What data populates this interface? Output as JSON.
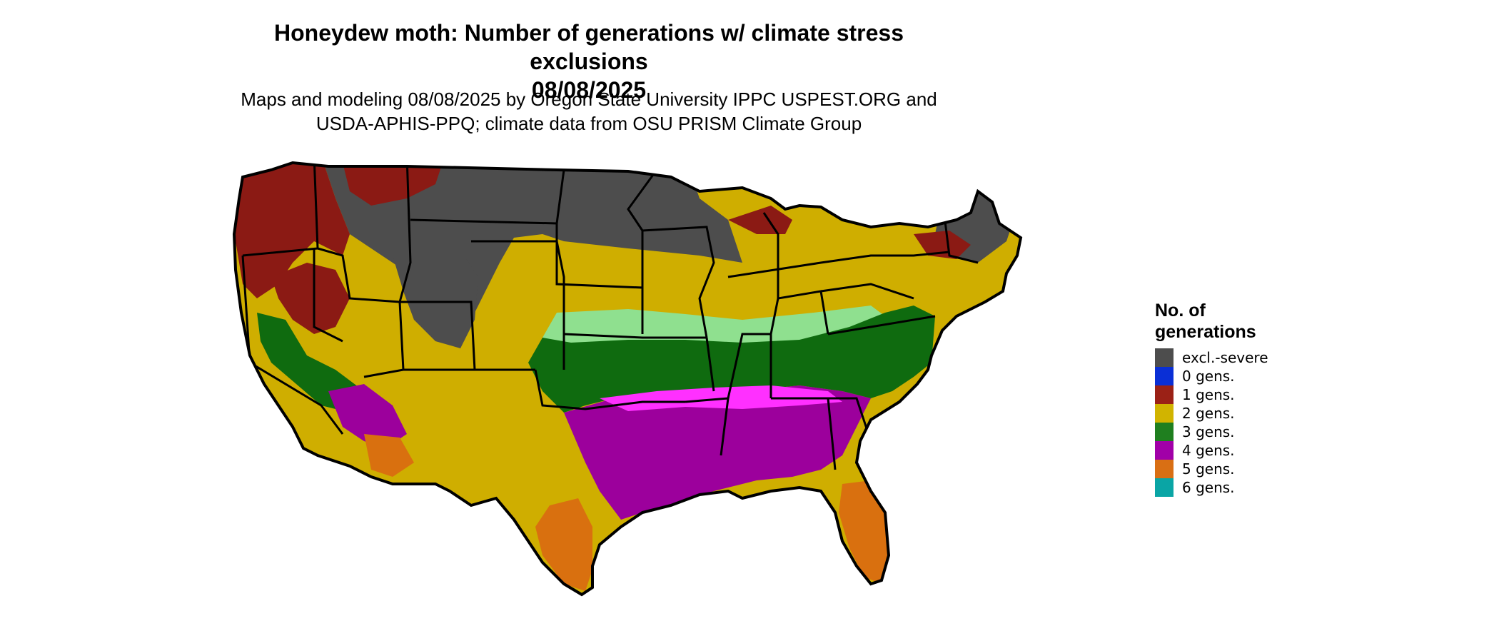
{
  "title": "Honeydew moth: Number of generations w/ climate stress exclusions",
  "title_date": "08/08/2025",
  "subtitle_line1": "Maps and modeling 08/08/2025 by Oregon State University IPPC USPEST.ORG and",
  "subtitle_line2": "USDA-APHIS-PPQ; climate data from OSU PRISM Climate Group",
  "legend": {
    "title_line1": "No. of",
    "title_line2": "generations",
    "items": [
      {
        "label": "excl.-severe",
        "color": "#4d4d4d"
      },
      {
        "label": "0 gens.",
        "color": "#0a2fd6"
      },
      {
        "label": "1 gens.",
        "color": "#9b2116"
      },
      {
        "label": "2 gens.",
        "color": "#d1b400"
      },
      {
        "label": "3 gens.",
        "color": "#1f7f1f"
      },
      {
        "label": "4 gens.",
        "color": "#a100a8"
      },
      {
        "label": "5 gens.",
        "color": "#d96f14"
      },
      {
        "label": "6 gens.",
        "color": "#0aa5a5"
      }
    ]
  },
  "map_colors": {
    "excluded": "#4d4d4d",
    "one_gen": "#8b1a14",
    "two_gen": "#cfae00",
    "three_gen": "#0f6b0f",
    "three_gen_light": "#8fe08f",
    "four_gen": "#9c009c",
    "four_gen_bright": "#ff30ff",
    "five_gen": "#d9700f",
    "six_gen": "#0aa5a5",
    "border": "#000000"
  }
}
